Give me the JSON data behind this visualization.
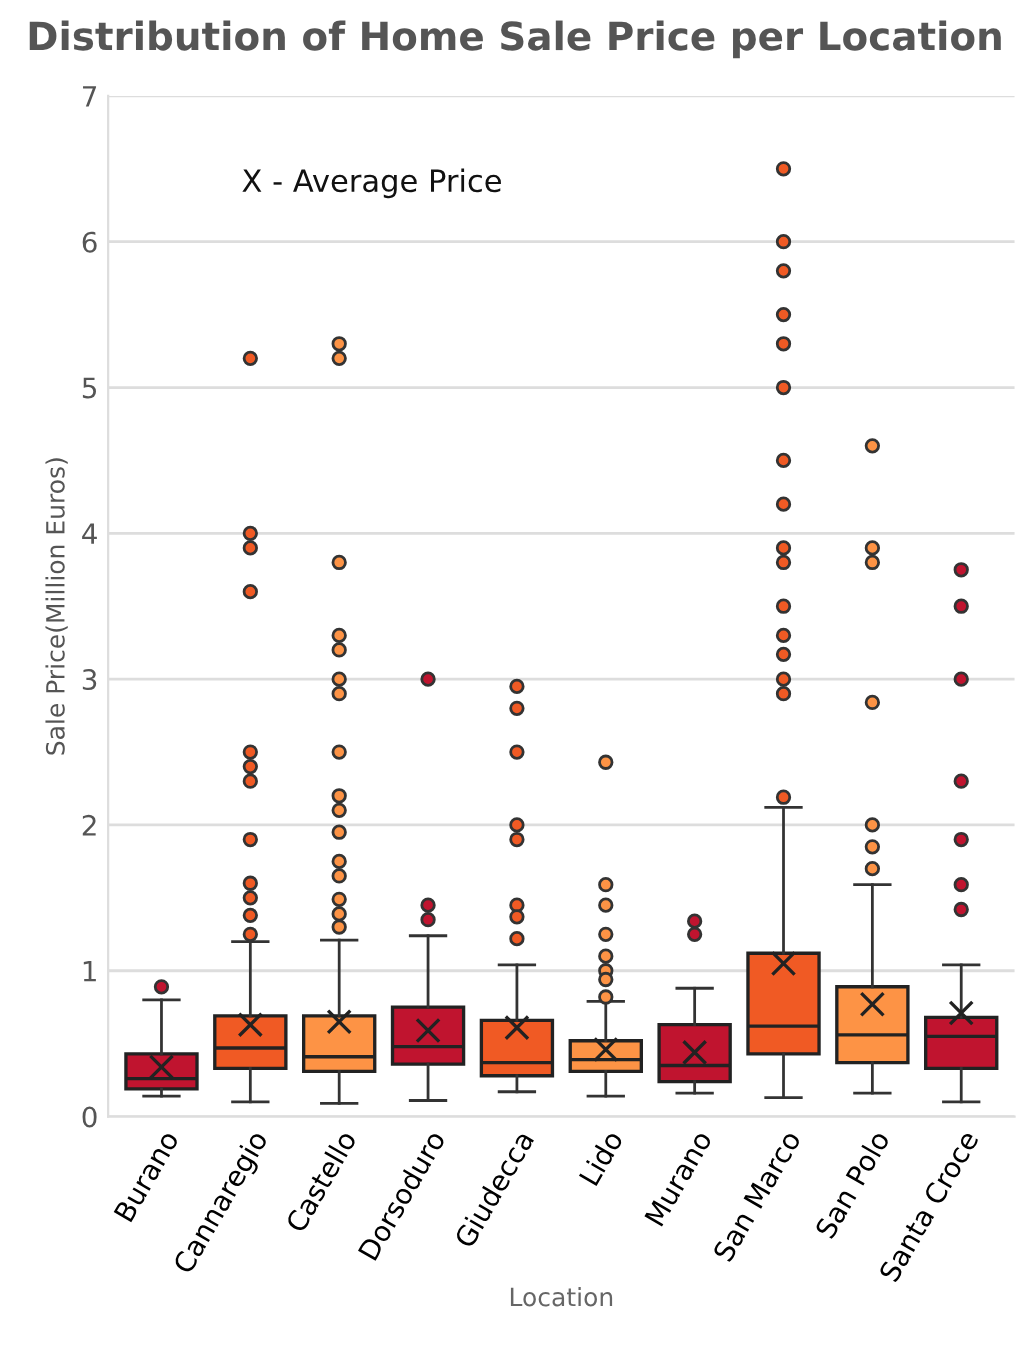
{
  "chart_data": {
    "type": "box",
    "title": "Distribution of Home Sale Price per Location",
    "xlabel": "Location",
    "ylabel": "Sale Price(Million Euros)",
    "annotations": [
      "X - Average Price"
    ],
    "categories": [
      "Burano",
      "Cannaregio",
      "Castello",
      "Dorsoduro",
      "Giudecca",
      "Lido",
      "Murano",
      "San Marco",
      "San Polo",
      "Santa Croce"
    ],
    "colors": [
      "#c0142f",
      "#f05a24",
      "#fd9345",
      "#c0142f",
      "#f05a24",
      "#fd9345",
      "#c0142f",
      "#f05a24",
      "#fd9345",
      "#c0142f"
    ],
    "boxes": [
      {
        "low": 0.14,
        "q1": 0.19,
        "median": 0.26,
        "q3": 0.43,
        "high": 0.8,
        "mean": 0.34,
        "outliers": [
          0.89
        ]
      },
      {
        "low": 0.1,
        "q1": 0.33,
        "median": 0.47,
        "q3": 0.69,
        "high": 1.2,
        "mean": 0.63,
        "outliers": [
          5.2,
          4.0,
          3.9,
          3.6,
          2.5,
          2.4,
          2.3,
          1.9,
          1.6,
          1.5,
          1.38,
          1.25
        ]
      },
      {
        "low": 0.09,
        "q1": 0.31,
        "median": 0.41,
        "q3": 0.69,
        "high": 1.21,
        "mean": 0.65,
        "outliers": [
          5.3,
          5.2,
          3.8,
          3.3,
          3.2,
          3.0,
          2.9,
          2.5,
          2.2,
          2.1,
          1.95,
          1.75,
          1.65,
          1.49,
          1.39,
          1.3
        ]
      },
      {
        "low": 0.11,
        "q1": 0.36,
        "median": 0.48,
        "q3": 0.75,
        "high": 1.24,
        "mean": 0.59,
        "outliers": [
          3.0,
          1.45,
          1.35
        ]
      },
      {
        "low": 0.17,
        "q1": 0.28,
        "median": 0.37,
        "q3": 0.66,
        "high": 1.04,
        "mean": 0.61,
        "outliers": [
          2.95,
          2.8,
          2.5,
          2.0,
          1.9,
          1.45,
          1.37,
          1.22
        ]
      },
      {
        "low": 0.14,
        "q1": 0.31,
        "median": 0.39,
        "q3": 0.52,
        "high": 0.79,
        "mean": 0.46,
        "outliers": [
          2.43,
          1.59,
          1.45,
          1.25,
          1.1,
          1.0,
          0.94,
          0.82
        ]
      },
      {
        "low": 0.16,
        "q1": 0.24,
        "median": 0.35,
        "q3": 0.63,
        "high": 0.88,
        "mean": 0.44,
        "outliers": [
          1.34,
          1.25
        ]
      },
      {
        "low": 0.13,
        "q1": 0.43,
        "median": 0.62,
        "q3": 1.12,
        "high": 2.12,
        "mean": 1.05,
        "outliers": [
          6.5,
          6.0,
          5.8,
          5.5,
          5.3,
          5.0,
          4.5,
          4.2,
          3.9,
          3.8,
          3.5,
          3.3,
          3.17,
          3.0,
          2.9,
          2.19
        ]
      },
      {
        "low": 0.16,
        "q1": 0.37,
        "median": 0.56,
        "q3": 0.89,
        "high": 1.59,
        "mean": 0.77,
        "outliers": [
          4.6,
          3.9,
          3.8,
          2.84,
          2.0,
          1.85,
          1.7
        ]
      },
      {
        "low": 0.1,
        "q1": 0.33,
        "median": 0.55,
        "q3": 0.68,
        "high": 1.04,
        "mean": 0.71,
        "outliers": [
          3.75,
          3.5,
          3.0,
          2.3,
          1.9,
          1.59,
          1.42
        ]
      }
    ],
    "ylim": [
      0,
      7
    ],
    "yticks": [
      0,
      1,
      2,
      3,
      4,
      5,
      6,
      7
    ],
    "grid": "y",
    "legend": false
  }
}
